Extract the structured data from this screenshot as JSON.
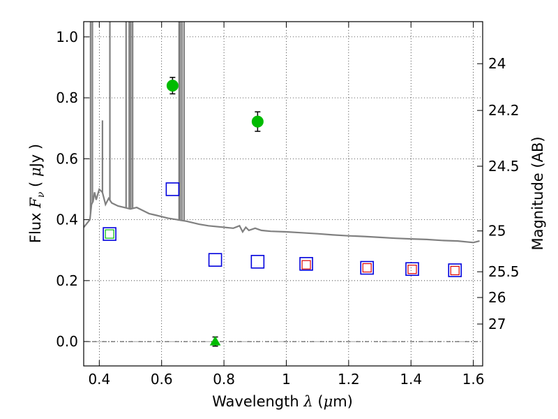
{
  "chart_data": {
    "type": "scatter",
    "xlabel": "Wavelength",
    "xlabel_symbol": "λ",
    "xlabel_unit_open": " (",
    "xlabel_unit_mu": "μ",
    "xlabel_unit_rest": "m)",
    "ylabel_prefix": "Flux",
    "ylabel_symbol": "F",
    "ylabel_sub": "ν",
    "ylabel_unit_open": "( ",
    "ylabel_unit_mu": "μ",
    "ylabel_unit_rest": "Jy )",
    "ylabel_right": "Magnitude (AB)",
    "xlim": [
      0.35,
      1.63
    ],
    "ylim": [
      -0.08,
      1.05
    ],
    "grid": true,
    "x_ticks": [
      {
        "v": 0.4,
        "label": "0.4"
      },
      {
        "v": 0.6,
        "label": "0.6"
      },
      {
        "v": 0.8,
        "label": "0.8"
      },
      {
        "v": 1.0,
        "label": "1"
      },
      {
        "v": 1.2,
        "label": "1.2"
      },
      {
        "v": 1.4,
        "label": "1.4"
      },
      {
        "v": 1.6,
        "label": "1.6"
      }
    ],
    "y_ticks": [
      {
        "v": 0.0,
        "label": "0.0"
      },
      {
        "v": 0.2,
        "label": "0.2"
      },
      {
        "v": 0.4,
        "label": "0.4"
      },
      {
        "v": 0.6,
        "label": "0.6"
      },
      {
        "v": 0.8,
        "label": "0.8"
      },
      {
        "v": 1.0,
        "label": "1.0"
      }
    ],
    "mag_ticks": [
      {
        "mag": 24,
        "label": "24"
      },
      {
        "mag": 24.2,
        "label": "24.2"
      },
      {
        "mag": 24.5,
        "label": "24.5"
      },
      {
        "mag": 25,
        "label": "25"
      },
      {
        "mag": 25.5,
        "label": "25.5"
      },
      {
        "mag": 26,
        "label": "26"
      },
      {
        "mag": 27,
        "label": "27"
      }
    ],
    "series": [
      {
        "kind": "detections",
        "color": "#00bb00",
        "points": [
          {
            "x": 0.635,
            "y": 0.84,
            "err": 0.027
          },
          {
            "x": 0.908,
            "y": 0.722,
            "err": 0.032
          }
        ]
      },
      {
        "kind": "upper_limit",
        "color": "#00bb00",
        "points": [
          {
            "x": 0.772,
            "y": 0.0,
            "err": 0.015
          }
        ]
      },
      {
        "kind": "model_photometry",
        "color": "#0000dd",
        "points": [
          {
            "x": 0.433,
            "y": 0.353
          },
          {
            "x": 0.635,
            "y": 0.5
          },
          {
            "x": 0.772,
            "y": 0.268
          },
          {
            "x": 0.908,
            "y": 0.262
          },
          {
            "x": 1.064,
            "y": 0.255
          },
          {
            "x": 1.259,
            "y": 0.242
          },
          {
            "x": 1.404,
            "y": 0.238
          },
          {
            "x": 1.541,
            "y": 0.234
          }
        ]
      },
      {
        "kind": "model_photometry_alt",
        "color": "#dd0000",
        "points": [
          {
            "x": 1.064,
            "y": 0.252
          },
          {
            "x": 1.259,
            "y": 0.242
          },
          {
            "x": 1.404,
            "y": 0.237
          },
          {
            "x": 1.541,
            "y": 0.233
          }
        ]
      },
      {
        "kind": "model_photometry_green",
        "color": "#00bb00",
        "points": [
          {
            "x": 0.433,
            "y": 0.353
          }
        ]
      },
      {
        "kind": "sed_model",
        "color": "#808080",
        "points": [
          [
            0.35,
            0.375
          ],
          [
            0.37,
            0.4
          ],
          [
            0.375,
            0.45
          ],
          [
            0.38,
            0.46
          ],
          [
            0.385,
            0.49
          ],
          [
            0.39,
            0.465
          ],
          [
            0.4,
            0.5
          ],
          [
            0.41,
            0.49
          ],
          [
            0.42,
            0.45
          ],
          [
            0.43,
            0.47
          ],
          [
            0.44,
            0.455
          ],
          [
            0.46,
            0.445
          ],
          [
            0.48,
            0.44
          ],
          [
            0.5,
            0.435
          ],
          [
            0.52,
            0.44
          ],
          [
            0.54,
            0.43
          ],
          [
            0.56,
            0.42
          ],
          [
            0.58,
            0.415
          ],
          [
            0.6,
            0.41
          ],
          [
            0.62,
            0.405
          ],
          [
            0.65,
            0.4
          ],
          [
            0.68,
            0.395
          ],
          [
            0.7,
            0.39
          ],
          [
            0.72,
            0.385
          ],
          [
            0.75,
            0.38
          ],
          [
            0.8,
            0.375
          ],
          [
            0.83,
            0.372
          ],
          [
            0.85,
            0.38
          ],
          [
            0.86,
            0.36
          ],
          [
            0.87,
            0.375
          ],
          [
            0.88,
            0.365
          ],
          [
            0.9,
            0.372
          ],
          [
            0.92,
            0.365
          ],
          [
            0.95,
            0.362
          ],
          [
            1.0,
            0.36
          ],
          [
            1.05,
            0.357
          ],
          [
            1.1,
            0.354
          ],
          [
            1.15,
            0.35
          ],
          [
            1.2,
            0.347
          ],
          [
            1.25,
            0.345
          ],
          [
            1.3,
            0.342
          ],
          [
            1.35,
            0.339
          ],
          [
            1.4,
            0.337
          ],
          [
            1.45,
            0.335
          ],
          [
            1.5,
            0.332
          ],
          [
            1.55,
            0.33
          ],
          [
            1.6,
            0.325
          ],
          [
            1.62,
            0.33
          ]
        ],
        "emission_lines": [
          [
            0.372,
            1.05
          ],
          [
            0.378,
            1.05
          ],
          [
            0.4102,
            0.68
          ],
          [
            0.434,
            1.05
          ],
          [
            0.486,
            1.05
          ],
          [
            0.496,
            1.05
          ],
          [
            0.501,
            1.05
          ],
          [
            0.507,
            1.05
          ],
          [
            0.656,
            1.05
          ],
          [
            0.659,
            1.05
          ],
          [
            0.665,
            1.05
          ],
          [
            0.672,
            1.05
          ]
        ]
      }
    ]
  }
}
